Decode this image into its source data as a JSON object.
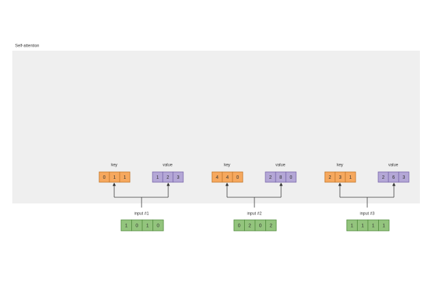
{
  "title": "Self-attention",
  "groups": [
    {
      "key_label": "key",
      "key": [
        "0",
        "1",
        "1"
      ],
      "value_label": "value",
      "value": [
        "1",
        "2",
        "3"
      ],
      "input_label": "input #1",
      "input": [
        "1",
        "0",
        "1",
        "0"
      ]
    },
    {
      "key_label": "key",
      "key": [
        "4",
        "4",
        "0"
      ],
      "value_label": "value",
      "value": [
        "2",
        "8",
        "0"
      ],
      "input_label": "input #2",
      "input": [
        "0",
        "2",
        "0",
        "2"
      ]
    },
    {
      "key_label": "key",
      "key": [
        "2",
        "3",
        "1"
      ],
      "value_label": "value",
      "value": [
        "2",
        "6",
        "3"
      ],
      "input_label": "input #3",
      "input": [
        "1",
        "1",
        "1",
        "1"
      ]
    }
  ]
}
